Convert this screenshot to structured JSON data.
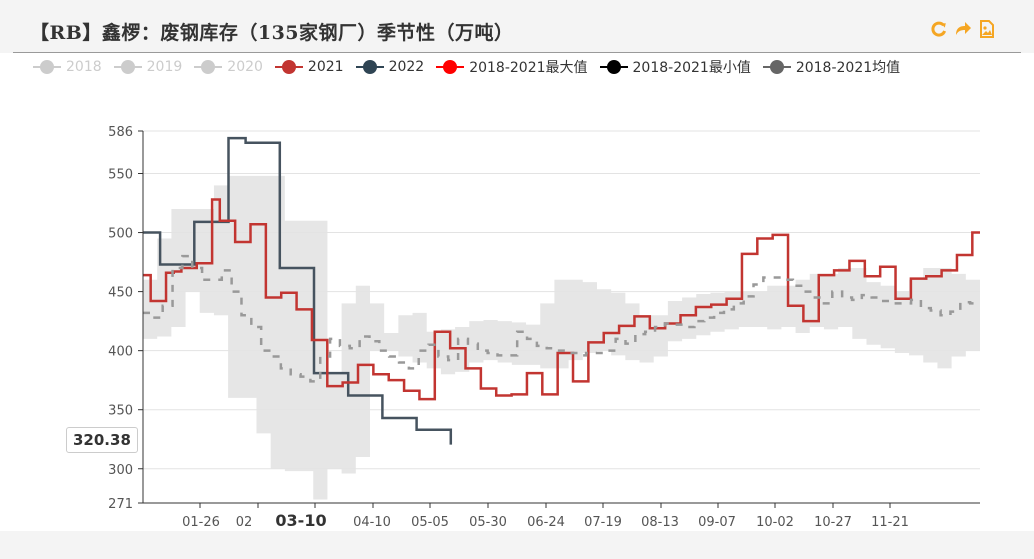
{
  "header": {
    "title": "【RB】鑫椤：废钢库存（135家钢厂）季节性（万吨）",
    "tools": [
      {
        "name": "refresh-icon",
        "color": "#f5a623"
      },
      {
        "name": "share-icon",
        "color": "#f5a623"
      },
      {
        "name": "save-image-icon",
        "color": "#f5a623"
      }
    ]
  },
  "legend": [
    {
      "label": "2018",
      "color": "#cccccc",
      "active": false
    },
    {
      "label": "2019",
      "color": "#cccccc",
      "active": false
    },
    {
      "label": "2020",
      "color": "#cccccc",
      "active": false
    },
    {
      "label": "2021",
      "color": "#c23531",
      "active": true
    },
    {
      "label": "2022",
      "color": "#2f4554",
      "active": true
    },
    {
      "label": "2018-2021最大值",
      "color": "#ff0000",
      "active": true
    },
    {
      "label": "2018-2021最小值",
      "color": "#000000",
      "active": true
    },
    {
      "label": "2018-2021均值",
      "color": "#666666",
      "active": true
    }
  ],
  "pointer": {
    "value": "320.38"
  },
  "chart_data": {
    "type": "line",
    "title": "【RB】鑫椤：废钢库存（135家钢厂）季节性（万吨）",
    "xlabel": "",
    "ylabel": "万吨",
    "ylim": [
      271,
      586
    ],
    "y_ticks": [
      271,
      300,
      350,
      400,
      450,
      500,
      550,
      586
    ],
    "x_ticks": [
      "01-26",
      "02",
      "03-10",
      "04-10",
      "05-05",
      "05-30",
      "06-24",
      "07-19",
      "08-13",
      "09-07",
      "10-02",
      "10-27",
      "11-21"
    ],
    "x_ticks_bold": [
      "03-10"
    ],
    "grid": true,
    "legend_position": "top",
    "step": true,
    "series": [
      {
        "name": "2022",
        "color": "#46535f",
        "values": [
          500,
          473,
          473,
          509,
          509,
          580,
          576,
          576,
          470,
          470,
          381,
          381,
          362,
          362,
          343,
          343,
          333,
          333,
          320.38
        ]
      },
      {
        "name": "2021",
        "color": "#c23531",
        "values": [
          464,
          442,
          442,
          466,
          467,
          470,
          470,
          474,
          474,
          528,
          510,
          510,
          492,
          492,
          507,
          507,
          445,
          445,
          449,
          449,
          435,
          435,
          409,
          409,
          370,
          370,
          373,
          373,
          388,
          388,
          380,
          380,
          375,
          375,
          366,
          366,
          359,
          359,
          416,
          416,
          402,
          402,
          385,
          385,
          368,
          368,
          362,
          362,
          363,
          363,
          381,
          381,
          363,
          363,
          398,
          398,
          374,
          374,
          407,
          407,
          415,
          415,
          421,
          421,
          429,
          429,
          419,
          419,
          423,
          423,
          430,
          430,
          437,
          437,
          439,
          439,
          444,
          444,
          482,
          482,
          495,
          495,
          498,
          498,
          438,
          438,
          425,
          425,
          464,
          464,
          468,
          468,
          476,
          476,
          463,
          463,
          471,
          471,
          444,
          444,
          461,
          461,
          463,
          463,
          468,
          468,
          481,
          481,
          500
        ]
      },
      {
        "name": "2018-2021均值",
        "color": "#999999",
        "dashed": true,
        "values": [
          432,
          428,
          438,
          470,
          480,
          470,
          460,
          460,
          468,
          450,
          430,
          420,
          400,
          395,
          385,
          380,
          378,
          374,
          395,
          410,
          404,
          402,
          412,
          408,
          400,
          395,
          390,
          385,
          400,
          405,
          395,
          392,
          410,
          406,
          400,
          398,
          396,
          396,
          416,
          410,
          404,
          402,
          400,
          398,
          396,
          398,
          398,
          400,
          410,
          406,
          414,
          416,
          420,
          423,
          422,
          420,
          425,
          428,
          432,
          435,
          440,
          446,
          456,
          462,
          462,
          460,
          455,
          450,
          445,
          440,
          450,
          445,
          443,
          447,
          445,
          442,
          440,
          440,
          443,
          436,
          434,
          430,
          433,
          441,
          440
        ]
      }
    ],
    "band": {
      "name": "2018-2021 range (max-min)",
      "color": "#e6e6e6",
      "upper": [
        460,
        495,
        520,
        520,
        520,
        540,
        548,
        548,
        548,
        548,
        510,
        510,
        510,
        380,
        440,
        455,
        440,
        415,
        430,
        432,
        416,
        418,
        420,
        425,
        426,
        425,
        424,
        422,
        440,
        460,
        460,
        458,
        452,
        449,
        440,
        430,
        430,
        442,
        445,
        448,
        449,
        450,
        450,
        450,
        455,
        455,
        460,
        465,
        465,
        470,
        470,
        458,
        455,
        450,
        460,
        470,
        470,
        465,
        460
      ],
      "lower": [
        410,
        412,
        420,
        450,
        432,
        430,
        360,
        360,
        330,
        300,
        298,
        298,
        274,
        300,
        296,
        310,
        400,
        400,
        395,
        390,
        385,
        380,
        382,
        390,
        392,
        390,
        388,
        388,
        385,
        385,
        392,
        398,
        400,
        396,
        392,
        390,
        395,
        408,
        410,
        413,
        416,
        418,
        420,
        420,
        418,
        420,
        415,
        420,
        418,
        420,
        410,
        405,
        402,
        398,
        396,
        390,
        385,
        395,
        400
      ]
    }
  }
}
